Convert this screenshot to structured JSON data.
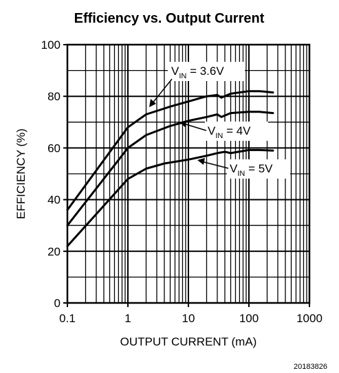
{
  "chart_data": {
    "type": "line",
    "title": "Efficiency vs. Output Current",
    "xlabel": "OUTPUT CURRENT (mA)",
    "ylabel": "EFFICIENCY (%)",
    "x_scale": "log",
    "xlim": [
      0.1,
      1000
    ],
    "ylim": [
      0,
      100
    ],
    "x_ticks": [
      0.1,
      1,
      10,
      100,
      1000
    ],
    "x_tick_labels": [
      "0.1",
      "1",
      "10",
      "100",
      "1000"
    ],
    "y_ticks": [
      0,
      20,
      40,
      60,
      80,
      100
    ],
    "y_tick_labels": [
      "0",
      "20",
      "40",
      "60",
      "80",
      "100"
    ],
    "grid": true,
    "series": [
      {
        "label_main": "V",
        "label_sub": "IN",
        "label_rest": " = 3.6V",
        "x": [
          0.1,
          1,
          2,
          5,
          10,
          20,
          30,
          35,
          50,
          100,
          150,
          250
        ],
        "y": [
          36,
          68,
          73,
          76,
          78,
          80,
          80.5,
          79.5,
          81,
          82,
          82,
          81.5
        ]
      },
      {
        "label_main": "V",
        "label_sub": "IN",
        "label_rest": " = 4V",
        "x": [
          0.1,
          1,
          2,
          5,
          10,
          20,
          30,
          35,
          50,
          100,
          150,
          250
        ],
        "y": [
          30,
          60,
          65,
          68.5,
          70.5,
          72,
          73,
          72,
          73.5,
          74,
          74,
          73.5
        ]
      },
      {
        "label_main": "V",
        "label_sub": "IN",
        "label_rest": " = 5V",
        "x": [
          0.1,
          1,
          2,
          4,
          10,
          20,
          30,
          40,
          50,
          100,
          150,
          250
        ],
        "y": [
          22,
          48,
          52,
          54,
          55.5,
          57,
          58,
          58.5,
          58,
          59.2,
          59.2,
          59
        ]
      }
    ],
    "figure_id": "20183826"
  }
}
